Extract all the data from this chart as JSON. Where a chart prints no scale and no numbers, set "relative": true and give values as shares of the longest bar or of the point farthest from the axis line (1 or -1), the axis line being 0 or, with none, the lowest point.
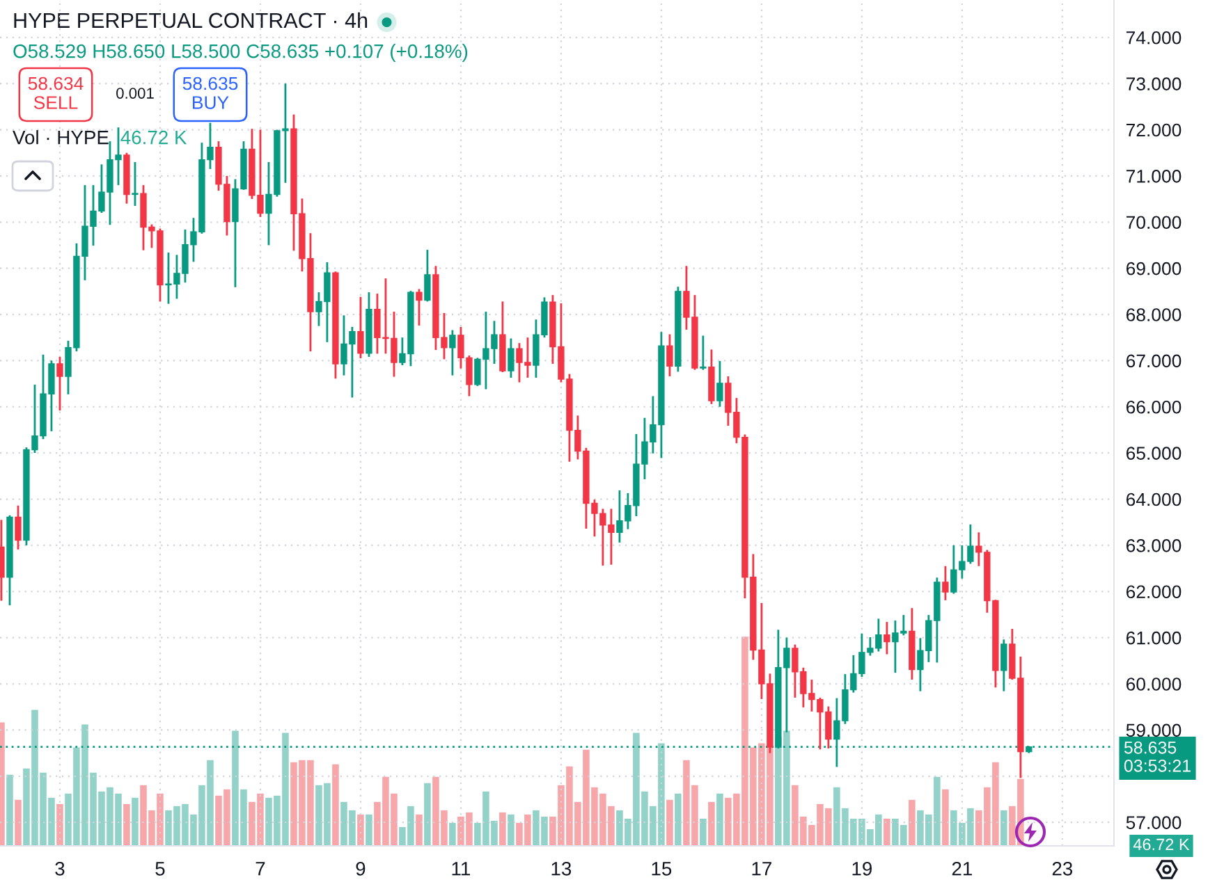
{
  "chart_data": [
    {
      "type": "candlestick",
      "title": "HYPE PERPETUAL CONTRACT · 4h",
      "x": [
        1.833,
        2,
        2.167,
        2.333,
        2.5,
        2.667,
        2.833,
        3,
        3.167,
        3.333,
        3.5,
        3.667,
        3.833,
        4,
        4.167,
        4.333,
        4.5,
        4.667,
        4.833,
        5,
        5.167,
        5.333,
        5.5,
        5.667,
        5.833,
        6,
        6.167,
        6.333,
        6.5,
        6.667,
        6.833,
        7,
        7.167,
        7.333,
        7.5,
        7.667,
        7.833,
        8,
        8.167,
        8.333,
        8.5,
        8.667,
        8.833,
        9,
        9.167,
        9.333,
        9.5,
        9.667,
        9.833,
        10,
        10.167,
        10.333,
        10.5,
        10.667,
        10.833,
        11,
        11.167,
        11.333,
        11.5,
        11.667,
        11.833,
        12,
        12.167,
        12.333,
        12.5,
        12.667,
        12.833,
        13,
        13.167,
        13.333,
        13.5,
        13.667,
        13.833,
        14,
        14.167,
        14.333,
        14.5,
        14.667,
        14.833,
        15,
        15.167,
        15.333,
        15.5,
        15.667,
        15.833,
        16,
        16.167,
        16.333,
        16.5,
        16.667,
        16.833,
        17,
        17.167,
        17.333,
        17.5,
        17.667,
        17.833,
        18,
        18.167,
        18.333,
        18.5,
        18.667,
        18.833,
        19,
        19.167,
        19.333,
        19.5,
        19.667,
        19.833,
        20,
        20.167,
        20.333,
        20.5,
        20.667,
        20.833,
        21,
        21.167,
        21.333,
        21.5,
        21.667,
        21.833,
        22,
        22.167,
        22.333
      ],
      "ohlc": [
        [
          62.96,
          63.55,
          61.8,
          62.31
        ],
        [
          62.31,
          63.65,
          61.7,
          63.61
        ],
        [
          63.61,
          63.86,
          62.91,
          63.11
        ],
        [
          63.11,
          65.12,
          63.0,
          65.07
        ],
        [
          65.07,
          66.48,
          65.0,
          65.37
        ],
        [
          65.37,
          67.13,
          65.3,
          66.28
        ],
        [
          66.28,
          67.0,
          65.47,
          66.93
        ],
        [
          66.93,
          67.08,
          65.92,
          66.66
        ],
        [
          66.66,
          67.43,
          66.27,
          67.28
        ],
        [
          67.28,
          69.54,
          67.2,
          69.26
        ],
        [
          69.26,
          70.8,
          68.74,
          69.91
        ],
        [
          69.91,
          70.8,
          69.49,
          70.24
        ],
        [
          70.24,
          71.25,
          70.2,
          70.65
        ],
        [
          70.65,
          71.75,
          69.94,
          71.35
        ],
        [
          71.35,
          72.05,
          70.8,
          71.45
        ],
        [
          71.45,
          71.5,
          70.4,
          70.6
        ],
        [
          70.6,
          71.3,
          70.35,
          70.62
        ],
        [
          70.62,
          70.8,
          69.39,
          69.89
        ],
        [
          69.89,
          69.95,
          69.44,
          69.81
        ],
        [
          69.81,
          69.86,
          68.28,
          68.64
        ],
        [
          68.64,
          69.34,
          68.23,
          68.66
        ],
        [
          68.66,
          69.29,
          68.34,
          68.89
        ],
        [
          68.89,
          69.84,
          68.69,
          69.51
        ],
        [
          69.51,
          70.09,
          69.14,
          69.79
        ],
        [
          69.79,
          71.72,
          69.75,
          71.35
        ],
        [
          71.35,
          72.15,
          71.15,
          71.62
        ],
        [
          71.62,
          71.75,
          70.68,
          70.82
        ],
        [
          70.82,
          71.0,
          69.71,
          70.01
        ],
        [
          70.01,
          70.93,
          68.59,
          70.72
        ],
        [
          70.72,
          71.75,
          70.7,
          71.58
        ],
        [
          71.58,
          72.02,
          70.5,
          70.58
        ],
        [
          70.58,
          72.0,
          70.11,
          70.19
        ],
        [
          70.19,
          71.3,
          69.5,
          70.6
        ],
        [
          70.6,
          72.0,
          70.55,
          71.98
        ],
        [
          71.98,
          73.0,
          70.85,
          72.02
        ],
        [
          72.02,
          72.33,
          69.38,
          70.18
        ],
        [
          70.18,
          70.51,
          68.93,
          69.21
        ],
        [
          69.21,
          69.76,
          67.2,
          68.06
        ],
        [
          68.06,
          68.48,
          67.75,
          68.28
        ],
        [
          68.28,
          69.13,
          67.4,
          68.9
        ],
        [
          68.9,
          68.93,
          66.61,
          66.93
        ],
        [
          66.93,
          67.98,
          66.68,
          67.36
        ],
        [
          67.36,
          67.73,
          66.2,
          67.63
        ],
        [
          67.63,
          68.38,
          67.05,
          67.16
        ],
        [
          67.16,
          68.48,
          67.08,
          68.11
        ],
        [
          68.11,
          68.45,
          67.15,
          67.5
        ],
        [
          67.5,
          68.78,
          67.15,
          67.48
        ],
        [
          67.48,
          68.06,
          66.65,
          66.96
        ],
        [
          66.96,
          67.5,
          66.9,
          67.15
        ],
        [
          67.15,
          68.51,
          66.88,
          68.48
        ],
        [
          68.48,
          68.55,
          67.76,
          68.31
        ],
        [
          68.31,
          69.4,
          68.28,
          68.86
        ],
        [
          68.86,
          69.05,
          67.23,
          67.5
        ],
        [
          67.5,
          68.03,
          67.03,
          67.28
        ],
        [
          67.28,
          67.66,
          66.68,
          67.55
        ],
        [
          67.55,
          67.73,
          66.83,
          67.06
        ],
        [
          67.06,
          67.11,
          66.23,
          66.48
        ],
        [
          66.48,
          67.06,
          66.45,
          67.03
        ],
        [
          67.03,
          68.06,
          66.38,
          67.26
        ],
        [
          67.26,
          67.86,
          66.93,
          67.56
        ],
        [
          67.56,
          68.28,
          66.75,
          66.78
        ],
        [
          66.78,
          67.48,
          66.63,
          67.26
        ],
        [
          67.26,
          67.38,
          66.53,
          66.96
        ],
        [
          66.96,
          67.5,
          66.63,
          66.9
        ],
        [
          66.9,
          67.89,
          66.63,
          67.56
        ],
        [
          67.56,
          68.37,
          67.5,
          68.27
        ],
        [
          68.27,
          68.42,
          66.93,
          67.3
        ],
        [
          67.3,
          68.24,
          66.53,
          66.6
        ],
        [
          66.6,
          66.71,
          64.81,
          65.49
        ],
        [
          65.49,
          65.81,
          64.86,
          65.04
        ],
        [
          65.04,
          65.11,
          63.36,
          63.91
        ],
        [
          63.91,
          63.99,
          63.19,
          63.69
        ],
        [
          63.69,
          63.79,
          62.56,
          63.44
        ],
        [
          63.44,
          63.79,
          62.58,
          63.28
        ],
        [
          63.28,
          64.19,
          63.06,
          63.53
        ],
        [
          63.53,
          64.13,
          63.35,
          63.86
        ],
        [
          63.86,
          65.41,
          63.63,
          64.76
        ],
        [
          64.76,
          65.76,
          64.43,
          65.24
        ],
        [
          65.24,
          66.23,
          64.99,
          65.61
        ],
        [
          65.61,
          67.62,
          64.89,
          67.32
        ],
        [
          67.32,
          67.57,
          66.66,
          66.88
        ],
        [
          66.88,
          68.6,
          66.76,
          68.5
        ],
        [
          68.5,
          69.05,
          67.67,
          67.94
        ],
        [
          67.94,
          68.42,
          66.8,
          66.84
        ],
        [
          66.84,
          67.54,
          66.8,
          66.86
        ],
        [
          66.86,
          67.24,
          66.06,
          66.13
        ],
        [
          66.13,
          66.99,
          66.0,
          66.51
        ],
        [
          66.51,
          66.66,
          65.59,
          65.88
        ],
        [
          65.88,
          66.19,
          65.21,
          65.34
        ],
        [
          65.34,
          65.4,
          61.85,
          62.31
        ],
        [
          62.31,
          62.81,
          60.52,
          60.73
        ],
        [
          60.73,
          61.75,
          59.67,
          60.0
        ],
        [
          60.0,
          60.22,
          58.5,
          58.63
        ],
        [
          58.63,
          61.17,
          58.6,
          60.35
        ],
        [
          60.35,
          61.0,
          58.95,
          60.77
        ],
        [
          60.77,
          60.85,
          59.7,
          60.26
        ],
        [
          60.26,
          60.35,
          59.49,
          59.79
        ],
        [
          59.79,
          60.09,
          59.4,
          59.66
        ],
        [
          59.66,
          59.7,
          58.58,
          59.39
        ],
        [
          59.39,
          59.51,
          58.6,
          58.8
        ],
        [
          58.8,
          59.69,
          58.2,
          59.2
        ],
        [
          59.2,
          60.21,
          59.13,
          59.87
        ],
        [
          59.87,
          60.62,
          59.81,
          60.22
        ],
        [
          60.22,
          61.09,
          60.15,
          60.68
        ],
        [
          60.68,
          61.01,
          60.61,
          60.77
        ],
        [
          60.77,
          61.41,
          60.7,
          61.06
        ],
        [
          61.06,
          61.34,
          60.64,
          60.91
        ],
        [
          60.91,
          61.37,
          60.24,
          61.1
        ],
        [
          61.1,
          61.49,
          61.05,
          61.14
        ],
        [
          61.14,
          61.64,
          60.09,
          60.31
        ],
        [
          60.31,
          60.99,
          59.84,
          60.72
        ],
        [
          60.72,
          61.49,
          60.47,
          61.37
        ],
        [
          61.37,
          62.3,
          60.46,
          62.2
        ],
        [
          62.2,
          62.55,
          61.81,
          61.99
        ],
        [
          61.99,
          63.0,
          61.95,
          62.47
        ],
        [
          62.47,
          63.0,
          62.28,
          62.65
        ],
        [
          62.65,
          63.45,
          62.6,
          62.98
        ],
        [
          62.98,
          63.28,
          62.55,
          62.85
        ],
        [
          62.85,
          62.9,
          61.54,
          61.8
        ],
        [
          61.8,
          61.82,
          59.92,
          60.29
        ],
        [
          60.29,
          60.96,
          59.84,
          60.86
        ],
        [
          60.86,
          61.19,
          60.09,
          60.12
        ],
        [
          60.12,
          60.59,
          57.96,
          58.53
        ],
        [
          58.529,
          58.65,
          58.5,
          58.635
        ]
      ],
      "colors": [
        "#f23645",
        "#089981",
        "#f23645",
        "#089981",
        "#089981",
        "#089981",
        "#089981",
        "#f23645",
        "#089981",
        "#089981",
        "#089981",
        "#089981",
        "#089981",
        "#089981",
        "#089981",
        "#f23645",
        "#089981",
        "#f23645",
        "#f23645",
        "#f23645",
        "#089981",
        "#089981",
        "#089981",
        "#089981",
        "#089981",
        "#089981",
        "#f23645",
        "#f23645",
        "#089981",
        "#089981",
        "#f23645",
        "#f23645",
        "#089981",
        "#089981",
        "#089981",
        "#f23645",
        "#f23645",
        "#f23645",
        "#089981",
        "#089981",
        "#f23645",
        "#089981",
        "#089981",
        "#f23645",
        "#089981",
        "#f23645",
        "#f23645",
        "#f23645",
        "#089981",
        "#089981",
        "#f23645",
        "#089981",
        "#f23645",
        "#f23645",
        "#089981",
        "#f23645",
        "#f23645",
        "#089981",
        "#089981",
        "#089981",
        "#f23645",
        "#089981",
        "#f23645",
        "#f23645",
        "#089981",
        "#089981",
        "#f23645",
        "#f23645",
        "#f23645",
        "#f23645",
        "#f23645",
        "#f23645",
        "#f23645",
        "#f23645",
        "#089981",
        "#089981",
        "#089981",
        "#089981",
        "#089981",
        "#089981",
        "#f23645",
        "#089981",
        "#f23645",
        "#f23645",
        "#089981",
        "#f23645",
        "#089981",
        "#f23645",
        "#f23645",
        "#f23645",
        "#f23645",
        "#f23645",
        "#f23645",
        "#089981",
        "#089981",
        "#f23645",
        "#f23645",
        "#f23645",
        "#f23645",
        "#f23645",
        "#089981",
        "#089981",
        "#089981",
        "#089981",
        "#089981",
        "#089981",
        "#f23645",
        "#089981",
        "#089981",
        "#f23645",
        "#089981",
        "#089981",
        "#089981",
        "#f23645",
        "#089981",
        "#089981",
        "#089981",
        "#f23645",
        "#f23645",
        "#f23645",
        "#089981",
        "#f23645",
        "#f23645",
        "#089981"
      ],
      "xlim": [
        1.806,
        24.03
      ],
      "xticks": [
        3,
        5,
        7,
        9,
        11,
        13,
        15,
        17,
        19,
        21,
        23
      ],
      "ylim": [
        56.49,
        74.81
      ],
      "yticks": [
        {
          "value": 57,
          "label": "57.000"
        },
        {
          "value": 58,
          "label": null
        },
        {
          "value": 59,
          "label": "59.000"
        },
        {
          "value": 60,
          "label": "60.000"
        },
        {
          "value": 61,
          "label": "61.000"
        },
        {
          "value": 62,
          "label": "62.000"
        },
        {
          "value": 63,
          "label": "63.000"
        },
        {
          "value": 64,
          "label": "64.000"
        },
        {
          "value": 65,
          "label": "65.000"
        },
        {
          "value": 66,
          "label": "66.000"
        },
        {
          "value": 67,
          "label": "67.000"
        },
        {
          "value": 68,
          "label": "68.000"
        },
        {
          "value": 69,
          "label": "69.000"
        },
        {
          "value": 70,
          "label": "70.000"
        },
        {
          "value": 71,
          "label": "71.000"
        },
        {
          "value": 72,
          "label": "72.000"
        },
        {
          "value": 73,
          "label": "73.000"
        },
        {
          "value": 74,
          "label": "74.000"
        }
      ],
      "grid": true,
      "ref_lines": [
        {
          "axis": "y",
          "value": 58.635,
          "label": "58.635\n03:53:21",
          "color": "#089981",
          "line_style": "dotted"
        }
      ],
      "annotations": [
        "O58.529 H58.650 L58.500 C58.635 +0.107 (+0.18%)",
        "58.634\nSELL",
        "0.001",
        "58.635\nBUY"
      ]
    },
    {
      "type": "bar",
      "relative": true,
      "tick_labels": false,
      "x": [
        1.833,
        2,
        2.167,
        2.333,
        2.5,
        2.667,
        2.833,
        3,
        3.167,
        3.333,
        3.5,
        3.667,
        3.833,
        4,
        4.167,
        4.333,
        4.5,
        4.667,
        4.833,
        5,
        5.167,
        5.333,
        5.5,
        5.667,
        5.833,
        6,
        6.167,
        6.333,
        6.5,
        6.667,
        6.833,
        7,
        7.167,
        7.333,
        7.5,
        7.667,
        7.833,
        8,
        8.167,
        8.333,
        8.5,
        8.667,
        8.833,
        9,
        9.167,
        9.333,
        9.5,
        9.667,
        9.833,
        10,
        10.167,
        10.333,
        10.5,
        10.667,
        10.833,
        11,
        11.167,
        11.333,
        11.5,
        11.667,
        11.833,
        12,
        12.167,
        12.333,
        12.5,
        12.667,
        12.833,
        13,
        13.167,
        13.333,
        13.5,
        13.667,
        13.833,
        14,
        14.167,
        14.333,
        14.5,
        14.667,
        14.833,
        15,
        15.167,
        15.333,
        15.5,
        15.667,
        15.833,
        16,
        16.167,
        16.333,
        16.5,
        16.667,
        16.833,
        17,
        17.167,
        17.333,
        17.5,
        17.667,
        17.833,
        18,
        18.167,
        18.333,
        18.5,
        18.667,
        18.833,
        19,
        19.167,
        19.333,
        19.5,
        19.667,
        19.833,
        20,
        20.167,
        20.333,
        20.5,
        20.667,
        20.833,
        21,
        21.167,
        21.333,
        21.5,
        21.667,
        21.833,
        22,
        22.167
      ],
      "values": [
        0.59,
        0.34,
        0.22,
        0.37,
        0.65,
        0.35,
        0.23,
        0.2,
        0.25,
        0.47,
        0.58,
        0.35,
        0.26,
        0.28,
        0.25,
        0.2,
        0.23,
        0.29,
        0.17,
        0.25,
        0.17,
        0.19,
        0.2,
        0.15,
        0.29,
        0.41,
        0.24,
        0.27,
        0.55,
        0.27,
        0.21,
        0.25,
        0.23,
        0.24,
        0.54,
        0.4,
        0.41,
        0.41,
        0.29,
        0.3,
        0.39,
        0.21,
        0.17,
        0.15,
        0.15,
        0.21,
        0.33,
        0.25,
        0.09,
        0.19,
        0.15,
        0.3,
        0.33,
        0.17,
        0.11,
        0.14,
        0.16,
        0.11,
        0.26,
        0.12,
        0.16,
        0.15,
        0.11,
        0.15,
        0.17,
        0.14,
        0.14,
        0.29,
        0.38,
        0.21,
        0.46,
        0.28,
        0.25,
        0.19,
        0.17,
        0.13,
        0.54,
        0.26,
        0.19,
        0.49,
        0.22,
        0.25,
        0.41,
        0.29,
        0.13,
        0.21,
        0.25,
        0.23,
        0.25,
        1,
        0.47,
        0.49,
        0.47,
        0.52,
        0.55,
        0.29,
        0.14,
        0.1,
        0.2,
        0.18,
        0.28,
        0.18,
        0.13,
        0.13,
        0.08,
        0.15,
        0.13,
        0.13,
        0.1,
        0.22,
        0.17,
        0.15,
        0.33,
        0.27,
        0.17,
        0.11,
        0.18,
        0.17,
        0.28,
        0.4,
        0.17,
        0.19,
        0.32
      ],
      "colors": [
        "#f7a6a9",
        "#92d2c8",
        "#f7a6a9",
        "#92d2c8",
        "#92d2c8",
        "#92d2c8",
        "#92d2c8",
        "#f7a6a9",
        "#92d2c8",
        "#92d2c8",
        "#92d2c8",
        "#92d2c8",
        "#92d2c8",
        "#92d2c8",
        "#92d2c8",
        "#f7a6a9",
        "#92d2c8",
        "#f7a6a9",
        "#f7a6a9",
        "#f7a6a9",
        "#92d2c8",
        "#92d2c8",
        "#92d2c8",
        "#92d2c8",
        "#92d2c8",
        "#92d2c8",
        "#f7a6a9",
        "#f7a6a9",
        "#92d2c8",
        "#92d2c8",
        "#f7a6a9",
        "#f7a6a9",
        "#92d2c8",
        "#92d2c8",
        "#92d2c8",
        "#f7a6a9",
        "#f7a6a9",
        "#f7a6a9",
        "#92d2c8",
        "#92d2c8",
        "#f7a6a9",
        "#92d2c8",
        "#92d2c8",
        "#f7a6a9",
        "#92d2c8",
        "#f7a6a9",
        "#f7a6a9",
        "#f7a6a9",
        "#92d2c8",
        "#92d2c8",
        "#f7a6a9",
        "#92d2c8",
        "#f7a6a9",
        "#f7a6a9",
        "#92d2c8",
        "#f7a6a9",
        "#f7a6a9",
        "#92d2c8",
        "#92d2c8",
        "#92d2c8",
        "#f7a6a9",
        "#92d2c8",
        "#f7a6a9",
        "#f7a6a9",
        "#92d2c8",
        "#92d2c8",
        "#f7a6a9",
        "#f7a6a9",
        "#f7a6a9",
        "#f7a6a9",
        "#f7a6a9",
        "#f7a6a9",
        "#f7a6a9",
        "#f7a6a9",
        "#92d2c8",
        "#92d2c8",
        "#92d2c8",
        "#92d2c8",
        "#92d2c8",
        "#92d2c8",
        "#f7a6a9",
        "#92d2c8",
        "#f7a6a9",
        "#f7a6a9",
        "#92d2c8",
        "#f7a6a9",
        "#92d2c8",
        "#f7a6a9",
        "#f7a6a9",
        "#f7a6a9",
        "#f7a6a9",
        "#f7a6a9",
        "#f7a6a9",
        "#92d2c8",
        "#92d2c8",
        "#f7a6a9",
        "#f7a6a9",
        "#f7a6a9",
        "#f7a6a9",
        "#f7a6a9",
        "#92d2c8",
        "#92d2c8",
        "#92d2c8",
        "#92d2c8",
        "#92d2c8",
        "#92d2c8",
        "#f7a6a9",
        "#92d2c8",
        "#92d2c8",
        "#f7a6a9",
        "#92d2c8",
        "#92d2c8",
        "#92d2c8",
        "#f7a6a9",
        "#92d2c8",
        "#92d2c8",
        "#92d2c8",
        "#f7a6a9",
        "#f7a6a9",
        "#f7a6a9",
        "#92d2c8",
        "#f7a6a9",
        "#f7a6a9"
      ],
      "xlim": [
        1.806,
        24.03
      ],
      "annotations": [
        "Vol · HYPE",
        "46.72 K",
        "46.72 K"
      ]
    }
  ]
}
